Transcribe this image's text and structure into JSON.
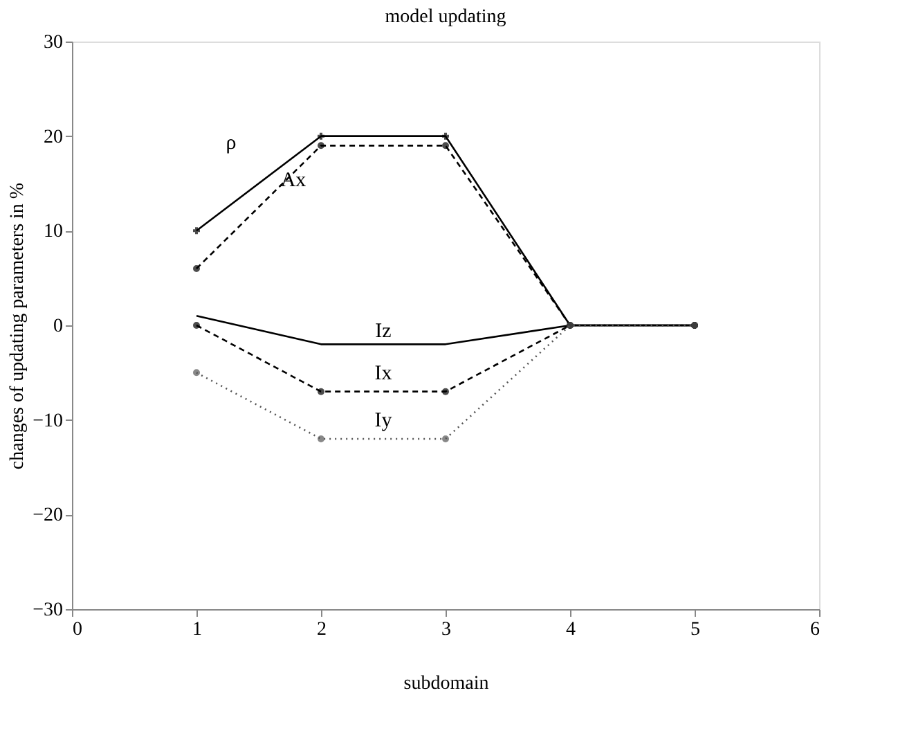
{
  "chart_data": {
    "type": "line",
    "title": "model updating",
    "xlabel": "subdomain",
    "ylabel": "changes of updating parameters in %",
    "x": [
      1,
      2,
      3,
      4,
      5
    ],
    "series": [
      {
        "name": "ρ",
        "color": "#000000",
        "values": [
          10,
          20,
          20,
          0,
          0
        ],
        "line_style": "solid",
        "marker": "cross"
      },
      {
        "name": "Ax",
        "color": "#000000",
        "values": [
          6,
          19,
          19,
          0,
          0
        ],
        "line_style": "dashed",
        "marker": "circle"
      },
      {
        "name": "Iz",
        "color": "#000000",
        "values": [
          1,
          -2,
          -2,
          0,
          0
        ],
        "line_style": "solid",
        "marker": "none"
      },
      {
        "name": "Ix",
        "color": "#000000",
        "values": [
          0,
          -7,
          -7,
          0,
          0
        ],
        "line_style": "dashed",
        "marker": "circle"
      },
      {
        "name": "Iy",
        "color": "#555555",
        "values": [
          -5,
          -12,
          -12,
          0,
          0
        ],
        "line_style": "dotted",
        "marker": "circle"
      }
    ],
    "xlim": [
      0,
      6
    ],
    "ylim": [
      -30,
      30
    ],
    "xticks": [
      0,
      1,
      2,
      3,
      4,
      5,
      6
    ],
    "yticks": [
      -30,
      -20,
      -10,
      0,
      10,
      20,
      30
    ],
    "grid": false
  }
}
